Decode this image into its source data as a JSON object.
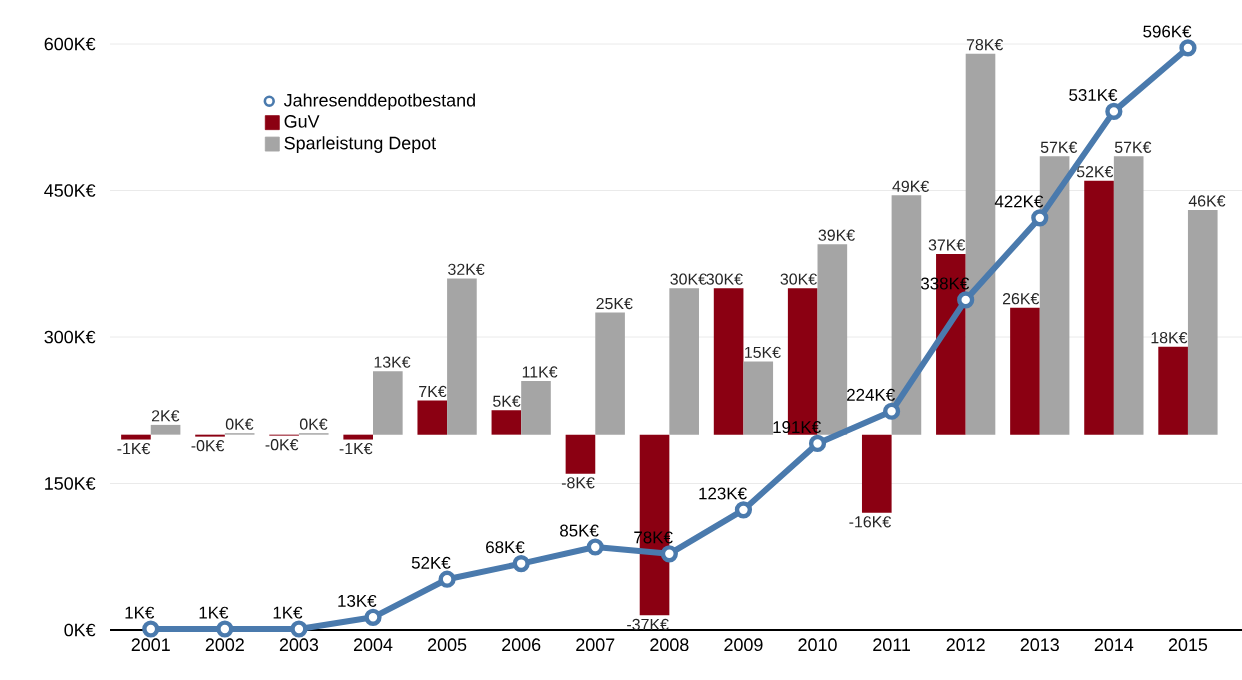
{
  "chart_data": {
    "type": "bar",
    "categories": [
      "2001",
      "2002",
      "2003",
      "2004",
      "2005",
      "2006",
      "2007",
      "2008",
      "2009",
      "2010",
      "2011",
      "2012",
      "2013",
      "2014",
      "2015"
    ],
    "ylim": [
      0,
      600
    ],
    "yticks": [
      {
        "value": 0,
        "label": "0K€"
      },
      {
        "value": 150,
        "label": "150K€"
      },
      {
        "value": 300,
        "label": "300K€"
      },
      {
        "value": 450,
        "label": "450K€"
      },
      {
        "value": 600,
        "label": "600K€"
      }
    ],
    "y2lim": [
      -40,
      80
    ],
    "grid": "y",
    "legend": "top left",
    "marker": "circle",
    "series": [
      {
        "name": "Jahresenddepotbestand",
        "type": "line",
        "color": "#4a7aad",
        "values": [
          1,
          1,
          1,
          13,
          52,
          68,
          85,
          78,
          123,
          191,
          224,
          338,
          422,
          531,
          596
        ],
        "value_labels": [
          "1K€",
          "1K€",
          "1K€",
          "13K€",
          "52K€",
          "68K€",
          "85K€",
          "78K€",
          "123K€",
          "191K€",
          "224K€",
          "338K€",
          "422K€",
          "531K€",
          "596K€"
        ]
      },
      {
        "name": "GuV",
        "axis": "y2",
        "color": "#8b0012",
        "values": [
          -1,
          -0.4,
          -0.2,
          -1,
          7,
          5,
          -8,
          -37,
          30,
          30,
          -16,
          37,
          26,
          52,
          18
        ],
        "value_labels": [
          "-1K€",
          "-0K€",
          "-0K€",
          "-1K€",
          "7K€",
          "5K€",
          "-8K€",
          "-37K€",
          "30K€",
          "30K€",
          "-16K€",
          "37K€",
          "26K€",
          "52K€",
          "18K€"
        ]
      },
      {
        "name": "Sparleistung Depot",
        "axis": "y2",
        "color": "#a5a5a5",
        "values": [
          2,
          0.3,
          0.3,
          13,
          32,
          11,
          25,
          30,
          15,
          39,
          49,
          78,
          57,
          57,
          46
        ],
        "value_labels": [
          "2K€",
          "0K€",
          "0K€",
          "13K€",
          "32K€",
          "11K€",
          "25K€",
          "30K€",
          "15K€",
          "39K€",
          "49K€",
          "78K€",
          "57K€",
          "57K€",
          "46K€"
        ]
      }
    ]
  }
}
